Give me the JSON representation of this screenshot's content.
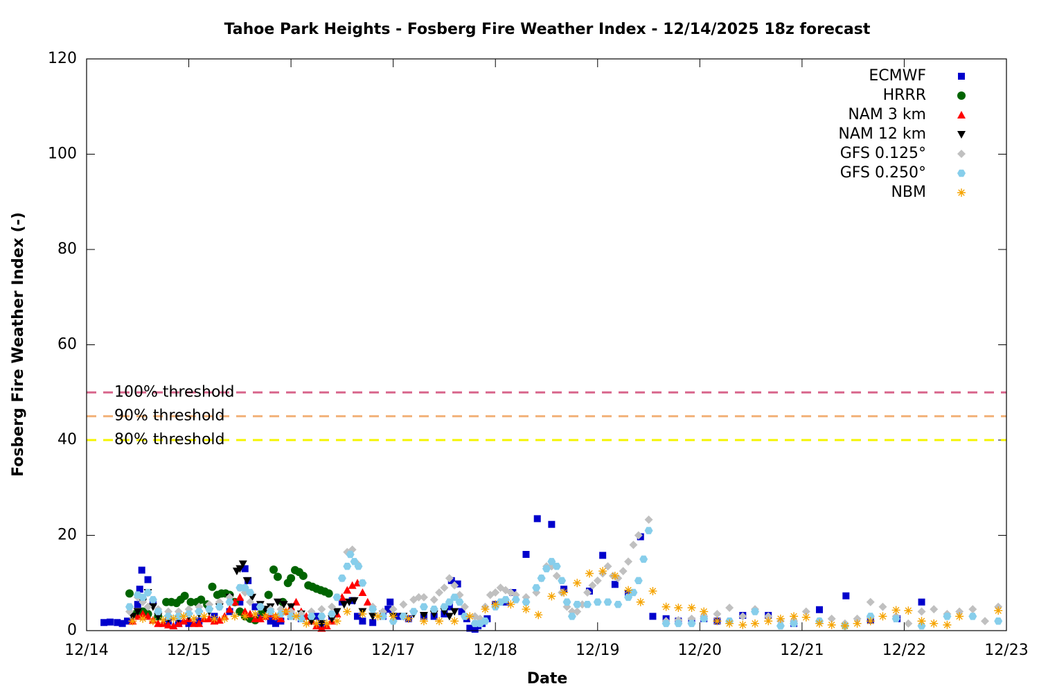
{
  "chart_data": {
    "type": "scatter",
    "title": "Tahoe Park Heights - Fosberg Fire Weather Index - 12/14/2025 18z forecast",
    "x_label": "Date",
    "y_label": "Fosberg Fire Weather Index (-)",
    "xlim": [
      0,
      9
    ],
    "xticks": [
      {
        "value": 0,
        "label": "12/14"
      },
      {
        "value": 1,
        "label": "12/15"
      },
      {
        "value": 2,
        "label": "12/16"
      },
      {
        "value": 3,
        "label": "12/17"
      },
      {
        "value": 4,
        "label": "12/18"
      },
      {
        "value": 5,
        "label": "12/19"
      },
      {
        "value": 6,
        "label": "12/20"
      },
      {
        "value": 7,
        "label": "12/21"
      },
      {
        "value": 8,
        "label": "12/22"
      },
      {
        "value": 9,
        "label": "12/23"
      }
    ],
    "ylim": [
      0,
      120
    ],
    "yticks": [
      0,
      20,
      40,
      60,
      80,
      100,
      120
    ],
    "legend": "top-right",
    "thresholds": [
      {
        "label": "100% threshold",
        "value": 50,
        "color": "#d8668c"
      },
      {
        "label": "90% threshold",
        "value": 45,
        "color": "#f2b27a"
      },
      {
        "label": "80% threshold",
        "value": 40,
        "color": "#f5f500"
      }
    ],
    "series": [
      {
        "name": "ECMWF",
        "color": "#0000cc",
        "marker": "square",
        "x": [
          0.17,
          0.23,
          0.3,
          0.35,
          0.4,
          0.5,
          0.52,
          0.54,
          0.6,
          0.65,
          0.7,
          0.8,
          0.9,
          1.0,
          1.1,
          1.25,
          1.4,
          1.5,
          1.55,
          1.58,
          1.65,
          1.7,
          1.8,
          1.85,
          1.9,
          2.0,
          2.1,
          2.25,
          2.3,
          2.4,
          2.5,
          2.6,
          2.65,
          2.7,
          2.8,
          2.9,
          2.95,
          2.97,
          3.05,
          3.15,
          3.3,
          3.4,
          3.5,
          3.55,
          3.57,
          3.63,
          3.67,
          3.72,
          3.75,
          3.8,
          3.83,
          3.87,
          3.92,
          4.0,
          4.1,
          4.17,
          4.3,
          4.41,
          4.55,
          4.67,
          4.92,
          5.05,
          5.17,
          5.3,
          5.42,
          5.54,
          5.67,
          5.79,
          5.92,
          6.04,
          6.17,
          6.42,
          6.67,
          6.92,
          7.17,
          7.43,
          7.67,
          7.93,
          8.17
        ],
        "values": [
          1.7,
          1.8,
          1.7,
          1.5,
          2,
          5.5,
          8.7,
          12.7,
          10.7,
          6,
          3,
          2,
          1.5,
          1.5,
          2,
          3,
          4,
          6,
          13,
          10.5,
          5,
          3,
          2,
          1.5,
          2,
          3,
          2.5,
          3,
          1,
          3,
          6,
          6.3,
          3,
          2,
          1.7,
          3,
          4.5,
          6,
          3,
          2.5,
          3,
          3,
          3.5,
          5,
          10.5,
          9.8,
          4,
          2.5,
          0.5,
          0.3,
          1,
          1.5,
          2.5,
          5.5,
          6,
          8,
          16,
          23.5,
          22.3,
          8.7,
          8.3,
          15.8,
          9.7,
          7.8,
          19.7,
          3,
          2.5,
          2,
          2,
          2.5,
          2,
          3.2,
          3.2,
          1.5,
          4.4,
          7.3,
          2.2,
          2.5,
          6
        ]
      },
      {
        "name": "HRRR",
        "color": "#006400",
        "marker": "circle",
        "x": [
          0.42,
          0.48,
          0.55,
          0.6,
          0.7,
          0.78,
          0.83,
          0.88,
          0.92,
          0.96,
          1.02,
          1.08,
          1.12,
          1.18,
          1.23,
          1.28,
          1.32,
          1.36,
          1.4,
          1.45,
          1.5,
          1.55,
          1.6,
          1.65,
          1.72,
          1.78,
          1.83,
          1.87,
          1.92,
          1.97,
          2.0,
          2.04,
          2.08,
          2.12,
          2.17,
          2.21,
          2.25,
          2.29,
          2.33,
          2.37
        ],
        "values": [
          7.8,
          3.5,
          4,
          3.5,
          3,
          6,
          6,
          5.8,
          6.5,
          7.3,
          6,
          6,
          6.5,
          5.5,
          9.2,
          7.5,
          7.8,
          7.8,
          7.5,
          6,
          4,
          3,
          2.5,
          2.2,
          4,
          7.5,
          12.8,
          11.3,
          6,
          10,
          11,
          12.7,
          12.3,
          11.5,
          9.5,
          9.2,
          8.8,
          8.5,
          8.2,
          7.8
        ]
      },
      {
        "name": "NAM 3 km",
        "color": "#ff0000",
        "marker": "triangle",
        "x": [
          0.45,
          0.5,
          0.55,
          0.6,
          0.65,
          0.7,
          0.75,
          0.8,
          0.85,
          0.9,
          0.95,
          1.0,
          1.05,
          1.1,
          1.15,
          1.2,
          1.25,
          1.3,
          1.35,
          1.4,
          1.45,
          1.5,
          1.55,
          1.6,
          1.65,
          1.7,
          1.75,
          1.8,
          1.85,
          1.9,
          1.95,
          2.0,
          2.05,
          2.1,
          2.15,
          2.2,
          2.25,
          2.3,
          2.35,
          2.4,
          2.45,
          2.5,
          2.55,
          2.6,
          2.65,
          2.7,
          2.75
        ],
        "values": [
          2,
          3,
          3.5,
          3,
          2.2,
          1.5,
          1.5,
          1.2,
          1,
          1.5,
          2,
          2.5,
          1.5,
          1.5,
          2.5,
          2.5,
          2,
          2.2,
          3,
          4.5,
          6,
          7,
          4,
          3.5,
          2.5,
          2.5,
          3,
          3.5,
          3,
          2.5,
          4,
          5,
          6,
          4,
          3,
          2,
          1,
          0.5,
          1,
          2,
          3.5,
          7,
          8.5,
          9.5,
          10,
          8,
          6
        ]
      },
      {
        "name": "NAM 12 km",
        "color": "#000000",
        "marker": "triangle-down",
        "x": [
          0.45,
          0.5,
          0.55,
          0.6,
          0.65,
          0.7,
          0.8,
          0.9,
          1.0,
          1.1,
          1.2,
          1.3,
          1.4,
          1.47,
          1.5,
          1.53,
          1.57,
          1.62,
          1.7,
          1.75,
          1.8,
          1.87,
          1.93,
          2.0,
          2.1,
          2.2,
          2.3,
          2.4,
          2.45,
          2.52,
          2.57,
          2.62,
          2.7,
          2.8,
          2.9,
          3.0,
          3.1,
          3.2,
          3.3,
          3.4,
          3.5,
          3.55,
          3.6
        ],
        "values": [
          3,
          4,
          6,
          8,
          5,
          3,
          2.5,
          2.5,
          3,
          3.5,
          4,
          5,
          7,
          12.5,
          13,
          14,
          10.5,
          7,
          5.5,
          4.5,
          5,
          6,
          5.5,
          5,
          3.5,
          2,
          1.5,
          2.5,
          4,
          5.5,
          6,
          6.3,
          4,
          3,
          3.5,
          3,
          3,
          3.5,
          3.2,
          3.5,
          4,
          3,
          4
        ]
      },
      {
        "name": "GFS 0.125°",
        "color": "#c0c0c0",
        "marker": "diamond",
        "x": [
          0.42,
          0.5,
          0.55,
          0.6,
          0.7,
          0.8,
          0.9,
          1.0,
          1.1,
          1.2,
          1.3,
          1.4,
          1.5,
          1.55,
          1.6,
          1.7,
          1.8,
          1.9,
          2.0,
          2.1,
          2.2,
          2.3,
          2.4,
          2.45,
          2.5,
          2.55,
          2.6,
          2.65,
          2.7,
          2.8,
          2.9,
          3.0,
          3.1,
          3.2,
          3.25,
          3.3,
          3.4,
          3.45,
          3.5,
          3.55,
          3.6,
          3.65,
          3.7,
          3.8,
          3.85,
          3.9,
          3.95,
          4.0,
          4.05,
          4.1,
          4.15,
          4.2,
          4.3,
          4.4,
          4.45,
          4.5,
          4.55,
          4.6,
          4.65,
          4.7,
          4.75,
          4.8,
          4.85,
          4.9,
          4.95,
          5.0,
          5.05,
          5.1,
          5.15,
          5.2,
          5.25,
          5.3,
          5.35,
          5.4,
          5.5,
          5.67,
          5.79,
          5.92,
          6.04,
          6.17,
          6.29,
          6.42,
          6.54,
          6.67,
          6.79,
          6.92,
          7.04,
          7.17,
          7.29,
          7.42,
          7.54,
          7.67,
          7.79,
          7.92,
          8.04,
          8.17,
          8.29,
          8.42,
          8.54,
          8.67,
          8.79,
          8.92
        ],
        "values": [
          4,
          7,
          6,
          5,
          4.5,
          4,
          4,
          4.5,
          5,
          5.5,
          6,
          7,
          9,
          8,
          6,
          5,
          4.5,
          4.5,
          4,
          3.5,
          4,
          4.5,
          5,
          7,
          11,
          16.5,
          17,
          14,
          10,
          5,
          4,
          4.5,
          5.5,
          6.5,
          7,
          7,
          6.5,
          8,
          9,
          11,
          9.5,
          7.5,
          5,
          3,
          2.5,
          5,
          7.5,
          8,
          9,
          8.5,
          8,
          7.5,
          7,
          8,
          11,
          13.5,
          13.5,
          11.5,
          8,
          5,
          4,
          4,
          5.5,
          8,
          9.5,
          10.5,
          12,
          13.5,
          11.5,
          11,
          12.5,
          14.5,
          18,
          20,
          23.3,
          2,
          2.2,
          2.5,
          3,
          3.5,
          4.8,
          3,
          4.5,
          3,
          2,
          2,
          4,
          2,
          2.5,
          1.5,
          2.5,
          6,
          5,
          3,
          1.5,
          4,
          4.5,
          3.5,
          4,
          4.5,
          2,
          5
        ]
      },
      {
        "name": "GFS 0.250°",
        "color": "#87ceeb",
        "marker": "hexagon",
        "x": [
          0.42,
          0.5,
          0.55,
          0.6,
          0.65,
          0.7,
          0.8,
          0.9,
          1.0,
          1.1,
          1.2,
          1.3,
          1.4,
          1.5,
          1.55,
          1.6,
          1.7,
          1.8,
          1.9,
          2.0,
          2.1,
          2.2,
          2.3,
          2.4,
          2.45,
          2.5,
          2.55,
          2.58,
          2.62,
          2.66,
          2.7,
          2.8,
          2.9,
          3.0,
          3.1,
          3.2,
          3.3,
          3.4,
          3.5,
          3.55,
          3.6,
          3.65,
          3.7,
          3.8,
          3.85,
          3.9,
          4.0,
          4.05,
          4.1,
          4.2,
          4.3,
          4.4,
          4.45,
          4.5,
          4.55,
          4.6,
          4.65,
          4.7,
          4.75,
          4.8,
          4.9,
          5.0,
          5.1,
          5.2,
          5.3,
          5.35,
          5.4,
          5.45,
          5.5,
          5.67,
          5.79,
          5.92,
          6.04,
          6.29,
          6.54,
          6.79,
          6.92,
          7.17,
          7.42,
          7.67,
          7.92,
          8.17,
          8.42,
          8.67,
          8.92
        ],
        "values": [
          5,
          7.5,
          7,
          8,
          6.5,
          4,
          3,
          3,
          3.5,
          4,
          4.5,
          5,
          6,
          9,
          9,
          8,
          5,
          4,
          3.5,
          3,
          2.5,
          3,
          3,
          3.5,
          7,
          11,
          13.5,
          16,
          14.5,
          13.5,
          10,
          4.5,
          3,
          2,
          3,
          4,
          5,
          4.5,
          5,
          6,
          7,
          6,
          3,
          1.5,
          1.5,
          2,
          5,
          6,
          6.5,
          6.5,
          6,
          9,
          11,
          13,
          14.5,
          13.5,
          10.5,
          6,
          3,
          5.5,
          5.5,
          6,
          6,
          5.5,
          7,
          8,
          10.5,
          15,
          21,
          1.5,
          1.5,
          1.5,
          2.5,
          2,
          4,
          1,
          1.5,
          2,
          1,
          3,
          2.5,
          1,
          3,
          3,
          2
        ]
      },
      {
        "name": "NBM",
        "color": "#f5a300",
        "marker": "asterisk",
        "x": [
          0.45,
          0.55,
          0.65,
          0.75,
          0.85,
          0.95,
          1.05,
          1.15,
          1.25,
          1.35,
          1.45,
          1.55,
          1.65,
          1.75,
          1.85,
          1.95,
          2.05,
          2.15,
          2.25,
          2.35,
          2.45,
          2.55,
          2.7,
          2.85,
          3.0,
          3.15,
          3.3,
          3.45,
          3.6,
          3.75,
          3.9,
          4.0,
          4.15,
          4.3,
          4.42,
          4.55,
          4.67,
          4.8,
          4.92,
          5.05,
          5.17,
          5.3,
          5.42,
          5.54,
          5.67,
          5.79,
          5.92,
          6.04,
          6.17,
          6.29,
          6.42,
          6.54,
          6.67,
          6.79,
          6.92,
          7.04,
          7.17,
          7.29,
          7.42,
          7.54,
          7.67,
          7.79,
          7.92,
          8.04,
          8.17,
          8.29,
          8.42,
          8.54,
          8.92
        ],
        "values": [
          2,
          2.5,
          2,
          2.2,
          2.5,
          3,
          2.5,
          3,
          2.5,
          2.5,
          3,
          3,
          3.5,
          3,
          3,
          4,
          3,
          1.5,
          1.5,
          1.5,
          2,
          4,
          3.5,
          3,
          3,
          2.5,
          2,
          2,
          2,
          3,
          4.5,
          5.5,
          5.5,
          4.5,
          3.3,
          7.2,
          8,
          10,
          12,
          12.5,
          11.5,
          8.5,
          6,
          8.3,
          5,
          4.8,
          4.8,
          4,
          2,
          1.5,
          1.2,
          1.5,
          2,
          2.5,
          3,
          2.8,
          1.5,
          1.2,
          1,
          1.5,
          2,
          3,
          4.3,
          4.2,
          2,
          1.5,
          1.2,
          3,
          4.2
        ]
      }
    ]
  }
}
